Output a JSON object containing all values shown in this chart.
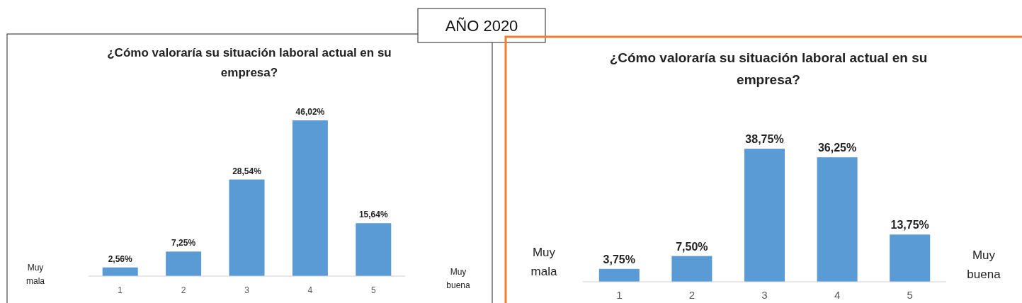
{
  "chart_data": [
    {
      "type": "bar",
      "title": "¿Cómo valoraría su situación laboral actual en su empresa?",
      "categories": [
        "1",
        "2",
        "3",
        "4",
        "5"
      ],
      "values": [
        2.56,
        7.25,
        28.54,
        46.02,
        15.64
      ],
      "color": "#5b9bd5",
      "data_labels": true,
      "value_labels": [
        "2,56%",
        "7,25%",
        "28,54%",
        "46,02%",
        "15,64%"
      ],
      "annotations": [
        "AÑO 2020",
        "Muy mala",
        "Muy buena"
      ]
    },
    {
      "type": "bar",
      "title": "¿Cómo valoraría su situación laboral actual en su empresa?",
      "categories": [
        "1",
        "2",
        "3",
        "4",
        "5"
      ],
      "values": [
        3.75,
        7.5,
        38.75,
        36.25,
        13.75
      ],
      "color": "#5b9bd5",
      "data_labels": true,
      "value_labels": [
        "3,75%",
        "7,50%",
        "38,75%",
        "36,25%",
        "13,75%"
      ],
      "annotations": [
        "Muy mala",
        "Muy buena"
      ]
    }
  ]
}
